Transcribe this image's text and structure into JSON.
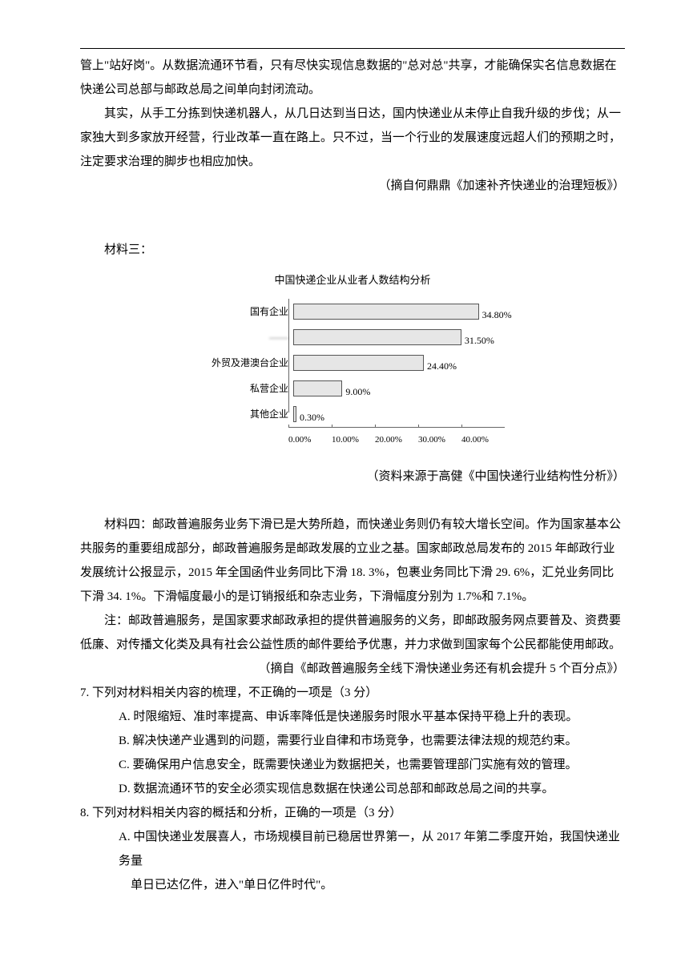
{
  "para1": "管上\"站好岗\"。从数据流通环节看，只有尽快实现信息数据的\"总对总\"共享，才能确保实名信息数据在快递公司总部与邮政总局之间单向封闭流动。",
  "para2": "其实，从手工分拣到快递机器人，从几日达到当日达，国内快递业从未停止自我升级的步伐；从一家独大到多家放开经营，行业改革一直在路上。只不过，当一个行业的发展速度远超人们的预期之时，注定要求治理的脚步也相应加快。",
  "source1": "（摘自何鼎鼎《加速补齐快递业的治理短板》）",
  "mat3_label": "材料三：",
  "chart": {
    "title": "中国快递企业从业者人数结构分析",
    "max_pct": 40,
    "background_color": "#ffffff",
    "bar_fill": "#e6e6e6",
    "bar_border": "#555555",
    "axis_color": "#666666",
    "categories": [
      {
        "label": "国有企业",
        "value": 34.8,
        "value_label": "34.80%"
      },
      {
        "label": "——",
        "value": 31.5,
        "value_label": "31.50%",
        "blurred": true
      },
      {
        "label": "外贸及港澳台企业",
        "value": 24.4,
        "value_label": "24.40%"
      },
      {
        "label": "私营企业",
        "value": 9.0,
        "value_label": "9.00%"
      },
      {
        "label": "其他企业",
        "value": 0.3,
        "value_label": "0.30%"
      }
    ],
    "ticks": [
      "0.00%",
      "10.00%",
      "20.00%",
      "30.00%",
      "40.00%"
    ]
  },
  "source2": "（资料来源于高健《中国快递行业结构性分析》）",
  "mat4": "材料四：邮政普遍服务业务下滑已是大势所趋，而快递业务则仍有较大增长空间。作为国家基本公共服务的重要组成部分，邮政普遍服务是邮政发展的立业之基。国家邮政总局发布的 2015 年邮政行业发展统计公报显示，2015 年全国函件业务同比下滑 18. 3%，包裹业务同比下滑 29. 6%，汇兑业务同比下滑 34. 1%。下滑幅度最小的是订销报纸和杂志业务，下滑幅度分别为 1.7%和 7.1%。",
  "mat4_note": "注：邮政普遍服务，是国家要求邮政承担的提供普遍服务的义务，即邮政服务网点要普及、资费要低廉、对传播文化类及具有社会公益性质的邮件要给予优惠，并力求做到国家每个公民都能使用邮政。",
  "source3": "（摘自《邮政普遍服务全线下滑快递业务还有机会提升 5 个百分点》）",
  "q7": {
    "stem": "7. 下列对材料相关内容的梳理，不正确的一项是（3 分）",
    "A": "A. 时限缩短、准时率提高、申诉率降低是快递服务时限水平基本保持平稳上升的表现。",
    "B": "B. 解决快递产业遇到的问题，需要行业自律和市场竞争，也需要法律法规的规范约束。",
    "C": "C. 要确保用户信息安全，既需要快递业为数据把关，也需要管理部门实施有效的管理。",
    "D": "D. 数据流通环节的安全必须实现信息数据在快递公司总部和邮政总局之间的共享。"
  },
  "q8": {
    "stem": "8. 下列对材料相关内容的概括和分析，正确的一项是（3 分）",
    "A": "A. 中国快递业发展喜人，市场规模目前已稳居世界第一，从 2017 年第二季度开始，我国快递业务量",
    "A2": "单日已达亿件，进入\"单日亿件时代\"。"
  }
}
